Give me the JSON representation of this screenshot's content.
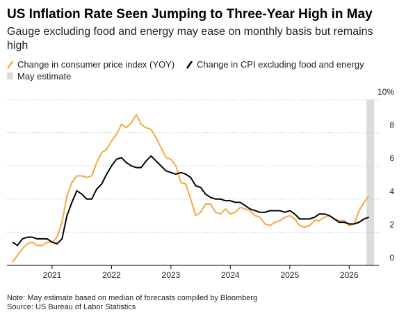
{
  "chart_data": {
    "type": "line",
    "title": "US Inflation Rate Seen Jumping to Three-Year High in May",
    "subtitle": "Gauge excluding food and energy may ease on monthly basis but remains high",
    "note": "Note: May estimate based on median of forecasts compiled by Bloomberg",
    "source": "Source: US Bureau of Labor Statistics",
    "x": [
      2020.333,
      2020.417,
      2020.5,
      2020.583,
      2020.667,
      2020.75,
      2020.833,
      2020.917,
      2021.0,
      2021.083,
      2021.167,
      2021.25,
      2021.333,
      2021.417,
      2021.5,
      2021.583,
      2021.667,
      2021.75,
      2021.833,
      2021.917,
      2022.0,
      2022.083,
      2022.167,
      2022.25,
      2022.333,
      2022.417,
      2022.5,
      2022.583,
      2022.667,
      2022.75,
      2022.833,
      2022.917,
      2023.0,
      2023.083,
      2023.167,
      2023.25,
      2023.333,
      2023.417,
      2023.5,
      2023.583,
      2023.667,
      2023.75,
      2023.833,
      2023.917,
      2024.0,
      2024.083,
      2024.167,
      2024.25,
      2024.333,
      2024.417,
      2024.5,
      2024.583,
      2024.667,
      2024.75,
      2024.833,
      2024.917,
      2025.0,
      2025.083,
      2025.167,
      2025.25,
      2025.333,
      2025.417,
      2025.5,
      2025.583,
      2025.667,
      2025.75,
      2025.833,
      2025.917,
      2026.0,
      2026.083,
      2026.167,
      2026.25,
      2026.333
    ],
    "series": [
      {
        "name": "Change in consumer price index (YOY)",
        "color": "#f5a742",
        "values": [
          0.2,
          0.6,
          1.0,
          1.3,
          1.4,
          1.2,
          1.2,
          1.4,
          1.4,
          1.7,
          2.6,
          4.2,
          5.0,
          5.4,
          5.4,
          5.3,
          5.4,
          6.2,
          6.8,
          7.0,
          7.5,
          7.9,
          8.5,
          8.3,
          8.6,
          9.1,
          8.5,
          8.3,
          8.2,
          7.7,
          7.1,
          6.5,
          6.4,
          6.0,
          5.0,
          4.9,
          4.0,
          3.0,
          3.2,
          3.7,
          3.7,
          3.2,
          3.1,
          3.4,
          3.1,
          3.2,
          3.5,
          3.4,
          3.3,
          3.0,
          2.9,
          2.5,
          2.4,
          2.6,
          2.7,
          2.9,
          3.0,
          2.8,
          2.4,
          2.3,
          2.4,
          2.7,
          2.7,
          2.9,
          3.0,
          2.8,
          2.7,
          2.7,
          2.4,
          2.5,
          3.3,
          3.8,
          4.2
        ]
      },
      {
        "name": "Change in CPI excluding food and energy",
        "color": "#000000",
        "values": [
          1.4,
          1.2,
          1.6,
          1.7,
          1.7,
          1.6,
          1.6,
          1.6,
          1.4,
          1.3,
          1.6,
          3.0,
          3.8,
          4.5,
          4.3,
          4.0,
          4.0,
          4.6,
          4.9,
          5.5,
          6.0,
          6.4,
          6.5,
          6.2,
          6.0,
          5.9,
          5.9,
          6.3,
          6.6,
          6.3,
          6.0,
          5.7,
          5.6,
          5.5,
          5.6,
          5.5,
          5.3,
          4.8,
          4.7,
          4.3,
          4.1,
          4.0,
          4.0,
          3.9,
          3.9,
          3.8,
          3.8,
          3.6,
          3.4,
          3.3,
          3.2,
          3.2,
          3.3,
          3.3,
          3.3,
          3.2,
          3.3,
          3.1,
          2.8,
          2.8,
          2.8,
          2.9,
          3.1,
          3.1,
          3.0,
          2.8,
          2.6,
          2.6,
          2.5,
          2.5,
          2.6,
          2.8,
          2.9
        ]
      }
    ],
    "shaded_region": {
      "name": "May estimate",
      "color": "#dcdcdc",
      "xrange": [
        2026.29,
        2026.42
      ]
    },
    "xlim": [
      2020.24,
      2026.5
    ],
    "xticks": [
      2021,
      2022,
      2023,
      2024,
      2025,
      2026
    ],
    "ylim": [
      0,
      10
    ],
    "yticks": [
      0,
      2,
      4,
      6,
      8,
      {
        "value": 10,
        "label": "10%"
      }
    ],
    "grid": true
  }
}
